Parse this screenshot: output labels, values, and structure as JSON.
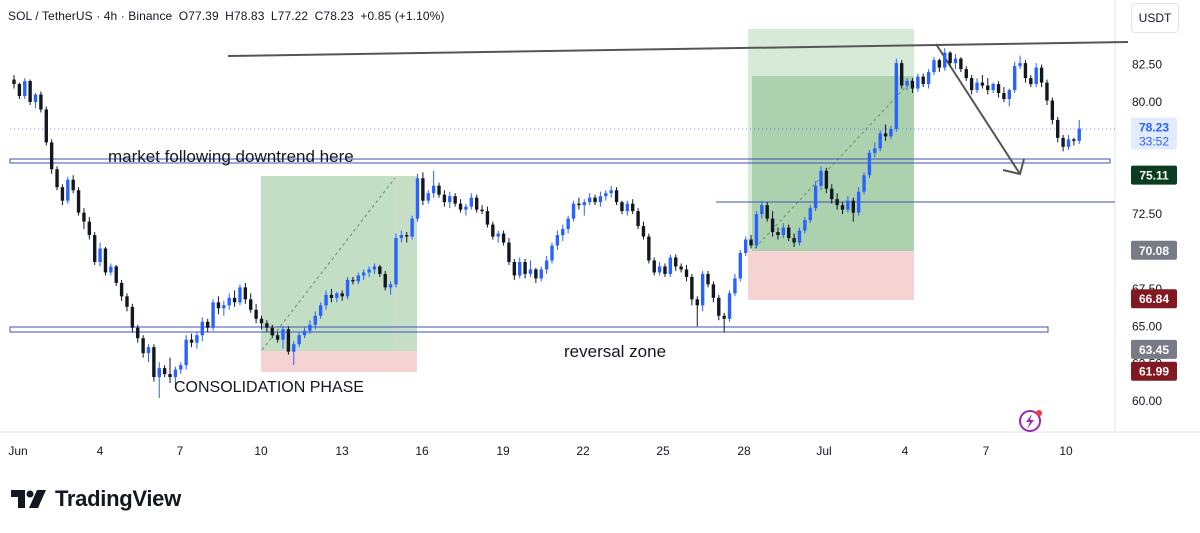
{
  "header": {
    "symbol": "SOL / TetherUS · 4h · Binance",
    "open": "O77.39",
    "high": "H78.83",
    "low": "L77.22",
    "close": "C78.23",
    "change": "+0.85 (+1.10%)"
  },
  "currency": "USDT",
  "brand": {
    "name": "TradingView",
    "icon": "tradingview-logo-icon"
  },
  "colors": {
    "bullish": "#2962ff",
    "bearish": "#131722",
    "profit_zone": "#9ccc9c",
    "loss_zone": "#f4c7c7",
    "green_label": "#0a3d1f",
    "dark_label": "#787b86",
    "red_label": "#801922",
    "last_price_label": "#2962ff"
  },
  "chart_data": {
    "type": "candlestick",
    "title": "SOL / TetherUS · 4h · Binance",
    "xlabel": "",
    "ylabel": "",
    "ylim": [
      58.7,
      86.5
    ],
    "y_ticks": [
      "82.50",
      "80.00",
      "72.50",
      "67.50",
      "65.00",
      "62.50",
      "60.00"
    ],
    "x_ticks": [
      "Jun",
      "4",
      "7",
      "10",
      "13",
      "16",
      "19",
      "22",
      "25",
      "28",
      "Jul",
      "4",
      "7",
      "10"
    ],
    "price_labels": [
      {
        "text": "78.23",
        "sub": "33:52",
        "value": 78.23,
        "style": "last"
      },
      {
        "text": "75.11",
        "value": 75.11,
        "style": "green"
      },
      {
        "text": "70.08",
        "value": 70.08,
        "style": "gray"
      },
      {
        "text": "66.84",
        "value": 66.84,
        "style": "red"
      },
      {
        "text": "63.45",
        "value": 63.45,
        "style": "gray"
      },
      {
        "text": "61.99",
        "value": 61.99,
        "style": "red"
      }
    ],
    "annotations": [
      "market following downtrend here",
      "CONSOLIDATION PHASE",
      "reversal zone"
    ],
    "candles_ohlc": [
      [
        81.5,
        81.8,
        80.9,
        81.2
      ],
      [
        81.2,
        81.3,
        80.2,
        80.4
      ],
      [
        80.4,
        81.6,
        80.2,
        81.4
      ],
      [
        81.4,
        81.5,
        79.8,
        80.0
      ],
      [
        80.0,
        80.6,
        79.6,
        80.5
      ],
      [
        80.5,
        80.7,
        79.3,
        79.5
      ],
      [
        79.5,
        79.7,
        77.1,
        77.3
      ],
      [
        77.3,
        77.5,
        75.2,
        75.5
      ],
      [
        75.5,
        75.7,
        74.1,
        74.3
      ],
      [
        74.3,
        74.5,
        73.1,
        73.4
      ],
      [
        73.4,
        75.0,
        73.2,
        74.8
      ],
      [
        74.8,
        75.1,
        73.9,
        74.1
      ],
      [
        74.1,
        74.3,
        72.4,
        72.6
      ],
      [
        72.6,
        72.9,
        71.5,
        72.0
      ],
      [
        72.0,
        72.3,
        70.8,
        71.1
      ],
      [
        71.1,
        71.3,
        69.1,
        69.3
      ],
      [
        69.3,
        70.6,
        69.0,
        70.2
      ],
      [
        70.2,
        70.3,
        68.4,
        68.6
      ],
      [
        68.6,
        69.2,
        68.4,
        69.0
      ],
      [
        69.0,
        69.1,
        67.7,
        67.9
      ],
      [
        67.9,
        68.1,
        66.7,
        67.0
      ],
      [
        67.0,
        67.2,
        66.0,
        66.3
      ],
      [
        66.3,
        66.5,
        64.6,
        64.9
      ],
      [
        64.9,
        65.1,
        63.9,
        64.2
      ],
      [
        64.2,
        64.4,
        62.9,
        63.2
      ],
      [
        63.2,
        63.8,
        62.6,
        63.6
      ],
      [
        63.6,
        63.8,
        61.3,
        61.6
      ],
      [
        61.6,
        62.6,
        60.2,
        62.2
      ],
      [
        62.2,
        62.4,
        61.6,
        61.8
      ],
      [
        61.8,
        62.9,
        61.2,
        61.6
      ],
      [
        61.6,
        62.3,
        61.1,
        62.1
      ],
      [
        62.1,
        62.6,
        61.8,
        62.4
      ],
      [
        62.4,
        64.4,
        62.1,
        64.1
      ],
      [
        64.1,
        64.5,
        63.6,
        63.9
      ],
      [
        63.9,
        64.6,
        63.5,
        64.4
      ],
      [
        64.4,
        65.6,
        64.0,
        65.3
      ],
      [
        65.3,
        65.5,
        64.6,
        64.9
      ],
      [
        64.9,
        66.8,
        64.7,
        66.6
      ],
      [
        66.6,
        67.0,
        65.8,
        66.2
      ],
      [
        66.2,
        66.7,
        65.7,
        66.4
      ],
      [
        66.4,
        67.2,
        66.1,
        66.9
      ],
      [
        66.9,
        67.4,
        66.3,
        66.6
      ],
      [
        66.6,
        67.8,
        66.4,
        67.6
      ],
      [
        67.6,
        67.9,
        66.5,
        66.8
      ],
      [
        66.8,
        67.2,
        65.9,
        66.1
      ],
      [
        66.1,
        66.5,
        65.2,
        65.5
      ],
      [
        65.5,
        65.7,
        64.8,
        65.2
      ],
      [
        65.2,
        65.4,
        64.6,
        64.9
      ],
      [
        64.9,
        65.1,
        64.2,
        64.4
      ],
      [
        64.4,
        64.6,
        63.9,
        64.1
      ],
      [
        64.1,
        65.0,
        63.5,
        64.8
      ],
      [
        64.8,
        65.0,
        63.1,
        63.3
      ],
      [
        63.3,
        64.0,
        62.4,
        63.8
      ],
      [
        63.8,
        64.6,
        63.6,
        64.4
      ],
      [
        64.4,
        64.9,
        64.2,
        64.7
      ],
      [
        64.7,
        65.4,
        64.5,
        65.1
      ],
      [
        65.1,
        66.0,
        64.8,
        65.7
      ],
      [
        65.7,
        66.6,
        65.5,
        66.4
      ],
      [
        66.4,
        67.4,
        66.1,
        67.1
      ],
      [
        67.1,
        67.5,
        66.6,
        66.9
      ],
      [
        66.9,
        67.3,
        66.6,
        67.2
      ],
      [
        67.2,
        67.4,
        66.7,
        67.0
      ],
      [
        67.0,
        68.3,
        66.8,
        68.1
      ],
      [
        68.1,
        68.3,
        67.8,
        68.0
      ],
      [
        68.0,
        68.6,
        67.8,
        68.4
      ],
      [
        68.4,
        68.8,
        68.1,
        68.6
      ],
      [
        68.6,
        69.0,
        68.3,
        68.8
      ],
      [
        68.8,
        69.2,
        68.5,
        69.0
      ],
      [
        69.0,
        69.1,
        68.3,
        68.5
      ],
      [
        68.5,
        68.7,
        67.4,
        67.6
      ],
      [
        67.6,
        68.0,
        67.1,
        67.8
      ],
      [
        67.8,
        71.2,
        67.6,
        70.9
      ],
      [
        70.9,
        71.4,
        70.6,
        71.1
      ],
      [
        71.1,
        71.3,
        70.6,
        71.0
      ],
      [
        71.0,
        72.4,
        70.8,
        72.2
      ],
      [
        72.2,
        75.2,
        72.0,
        74.9
      ],
      [
        74.9,
        75.3,
        73.1,
        73.4
      ],
      [
        73.4,
        74.1,
        73.2,
        73.9
      ],
      [
        73.9,
        75.4,
        73.6,
        74.4
      ],
      [
        74.4,
        74.6,
        73.6,
        73.8
      ],
      [
        73.8,
        74.1,
        73.0,
        73.3
      ],
      [
        73.3,
        74.0,
        72.9,
        73.7
      ],
      [
        73.7,
        73.9,
        73.0,
        73.2
      ],
      [
        73.2,
        73.5,
        72.6,
        72.8
      ],
      [
        72.8,
        73.2,
        72.4,
        73.0
      ],
      [
        73.0,
        73.9,
        72.8,
        73.6
      ],
      [
        73.6,
        73.8,
        72.6,
        72.8
      ],
      [
        72.8,
        73.1,
        72.5,
        72.7
      ],
      [
        72.7,
        73.0,
        71.6,
        71.8
      ],
      [
        71.8,
        72.0,
        70.8,
        71.0
      ],
      [
        71.0,
        71.4,
        70.6,
        71.2
      ],
      [
        71.2,
        71.4,
        70.4,
        70.6
      ],
      [
        70.6,
        70.9,
        69.1,
        69.3
      ],
      [
        69.3,
        69.5,
        68.1,
        68.4
      ],
      [
        68.4,
        69.6,
        68.2,
        69.3
      ],
      [
        69.3,
        69.5,
        68.2,
        68.5
      ],
      [
        68.5,
        69.4,
        68.3,
        68.8
      ],
      [
        68.8,
        68.9,
        67.9,
        68.2
      ],
      [
        68.2,
        69.0,
        68.0,
        68.8
      ],
      [
        68.8,
        69.7,
        68.5,
        69.4
      ],
      [
        69.4,
        70.6,
        69.2,
        70.4
      ],
      [
        70.4,
        71.4,
        70.1,
        71.1
      ],
      [
        71.1,
        71.8,
        70.7,
        71.5
      ],
      [
        71.5,
        72.4,
        71.2,
        72.2
      ],
      [
        72.2,
        73.4,
        72.0,
        73.2
      ],
      [
        73.2,
        73.6,
        72.8,
        73.1
      ],
      [
        73.1,
        73.5,
        72.4,
        73.3
      ],
      [
        73.3,
        73.9,
        73.1,
        73.6
      ],
      [
        73.6,
        73.8,
        73.1,
        73.3
      ],
      [
        73.3,
        74.0,
        73.0,
        73.7
      ],
      [
        73.7,
        74.1,
        73.4,
        73.9
      ],
      [
        73.9,
        74.4,
        73.6,
        74.1
      ],
      [
        74.1,
        74.3,
        73.1,
        73.3
      ],
      [
        73.3,
        73.4,
        72.5,
        72.7
      ],
      [
        72.7,
        73.4,
        72.4,
        73.2
      ],
      [
        73.2,
        73.5,
        72.5,
        72.7
      ],
      [
        72.7,
        72.9,
        71.5,
        71.7
      ],
      [
        71.7,
        72.0,
        70.8,
        71.0
      ],
      [
        71.0,
        71.2,
        69.2,
        69.4
      ],
      [
        69.4,
        69.6,
        68.4,
        68.6
      ],
      [
        68.6,
        69.3,
        68.4,
        69.0
      ],
      [
        69.0,
        69.2,
        68.3,
        68.5
      ],
      [
        68.5,
        69.8,
        68.3,
        69.6
      ],
      [
        69.6,
        69.8,
        68.7,
        69.0
      ],
      [
        69.0,
        69.2,
        68.6,
        68.8
      ],
      [
        68.8,
        69.1,
        68.0,
        68.3
      ],
      [
        68.3,
        68.5,
        66.4,
        66.8
      ],
      [
        66.8,
        67.0,
        65.0,
        66.4
      ],
      [
        66.4,
        68.7,
        66.0,
        68.5
      ],
      [
        68.5,
        68.7,
        67.6,
        67.8
      ],
      [
        67.8,
        68.0,
        66.6,
        66.9
      ],
      [
        66.9,
        67.1,
        65.4,
        65.7
      ],
      [
        65.7,
        65.9,
        64.6,
        65.5
      ],
      [
        65.5,
        67.4,
        65.3,
        67.2
      ],
      [
        67.2,
        68.5,
        67.0,
        68.2
      ],
      [
        68.2,
        70.1,
        68.0,
        69.9
      ],
      [
        69.9,
        71.0,
        69.7,
        70.8
      ],
      [
        70.8,
        71.1,
        70.2,
        70.4
      ],
      [
        70.4,
        72.7,
        70.2,
        72.5
      ],
      [
        72.5,
        73.4,
        72.2,
        73.1
      ],
      [
        73.1,
        73.3,
        72.0,
        72.2
      ],
      [
        72.2,
        72.7,
        71.0,
        71.3
      ],
      [
        71.3,
        71.6,
        70.8,
        71.1
      ],
      [
        71.1,
        71.9,
        70.9,
        71.6
      ],
      [
        71.6,
        71.8,
        70.7,
        70.9
      ],
      [
        70.9,
        71.2,
        70.3,
        70.6
      ],
      [
        70.6,
        71.6,
        70.4,
        71.4
      ],
      [
        71.4,
        72.3,
        71.2,
        72.1
      ],
      [
        72.1,
        73.1,
        71.9,
        72.9
      ],
      [
        72.9,
        74.7,
        72.7,
        74.4
      ],
      [
        74.4,
        75.7,
        74.1,
        75.4
      ],
      [
        75.4,
        75.6,
        73.9,
        74.2
      ],
      [
        74.2,
        74.5,
        73.2,
        73.5
      ],
      [
        73.5,
        73.9,
        72.8,
        73.1
      ],
      [
        73.1,
        73.3,
        72.5,
        72.8
      ],
      [
        72.8,
        73.7,
        72.6,
        73.4
      ],
      [
        73.4,
        73.6,
        72.0,
        72.6
      ],
      [
        72.6,
        74.3,
        72.4,
        74.0
      ],
      [
        74.0,
        75.3,
        73.8,
        75.1
      ],
      [
        75.1,
        76.8,
        74.9,
        76.6
      ],
      [
        76.6,
        77.3,
        76.3,
        76.9
      ],
      [
        76.9,
        78.1,
        76.7,
        77.9
      ],
      [
        77.9,
        78.5,
        77.4,
        77.7
      ],
      [
        77.7,
        78.4,
        77.5,
        78.2
      ],
      [
        78.2,
        82.9,
        78.0,
        82.6
      ],
      [
        82.6,
        82.8,
        80.9,
        81.1
      ],
      [
        81.1,
        81.6,
        80.8,
        81.4
      ],
      [
        81.4,
        81.6,
        80.6,
        80.9
      ],
      [
        80.9,
        81.9,
        80.7,
        81.7
      ],
      [
        81.7,
        81.9,
        81.0,
        81.2
      ],
      [
        81.2,
        82.2,
        80.9,
        82.0
      ],
      [
        82.0,
        83.0,
        81.8,
        82.8
      ],
      [
        82.8,
        82.9,
        82.0,
        82.3
      ],
      [
        82.3,
        83.6,
        82.1,
        83.3
      ],
      [
        83.3,
        83.4,
        82.4,
        82.6
      ],
      [
        82.6,
        83.2,
        82.2,
        82.9
      ],
      [
        82.9,
        83.0,
        82.0,
        82.2
      ],
      [
        82.2,
        82.4,
        81.4,
        81.6
      ],
      [
        81.6,
        81.8,
        80.5,
        80.8
      ],
      [
        80.8,
        81.6,
        80.6,
        81.3
      ],
      [
        81.3,
        81.8,
        80.9,
        81.1
      ],
      [
        81.1,
        81.6,
        80.5,
        80.8
      ],
      [
        80.8,
        81.3,
        80.6,
        81.2
      ],
      [
        81.2,
        81.4,
        80.3,
        80.6
      ],
      [
        80.6,
        81.0,
        80.0,
        80.2
      ],
      [
        80.2,
        80.9,
        79.7,
        80.8
      ],
      [
        80.8,
        82.7,
        80.6,
        82.4
      ],
      [
        82.4,
        83.1,
        82.2,
        82.6
      ],
      [
        82.6,
        82.8,
        81.3,
        81.6
      ],
      [
        81.6,
        81.8,
        81.0,
        81.2
      ],
      [
        81.2,
        82.6,
        81.0,
        82.3
      ],
      [
        82.3,
        82.5,
        81.0,
        81.3
      ],
      [
        81.3,
        81.5,
        79.8,
        80.1
      ],
      [
        80.1,
        80.3,
        78.5,
        78.8
      ],
      [
        78.8,
        79.0,
        77.3,
        77.6
      ],
      [
        77.6,
        77.8,
        76.7,
        77.0
      ],
      [
        77.0,
        77.8,
        76.8,
        77.5
      ],
      [
        77.5,
        77.6,
        77.1,
        77.4
      ],
      [
        77.4,
        78.8,
        77.2,
        78.23
      ]
    ]
  }
}
